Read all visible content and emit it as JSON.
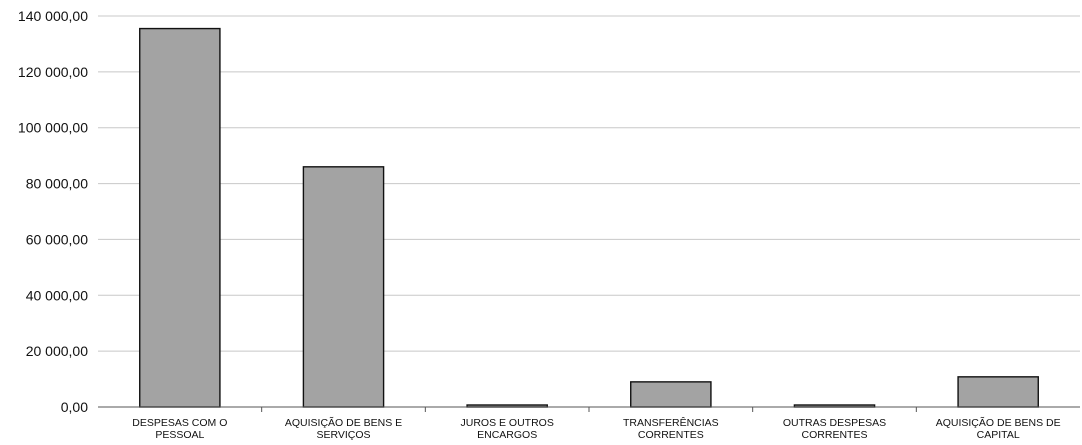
{
  "chart_data": {
    "type": "bar",
    "title": "",
    "xlabel": "",
    "ylabel": "",
    "categories": [
      [
        "DESPESAS COM O",
        "PESSOAL"
      ],
      [
        "AQUISIÇÃO DE BENS E",
        "SERVIÇOS"
      ],
      [
        "JUROS E OUTROS",
        "ENCARGOS"
      ],
      [
        "TRANSFERÊNCIAS",
        "CORRENTES"
      ],
      [
        "OUTRAS DESPESAS",
        "CORRENTES"
      ],
      [
        "AQUISIÇÃO DE BENS DE",
        "CAPITAL"
      ]
    ],
    "values": [
      135500,
      86000,
      400,
      9000,
      300,
      10800
    ],
    "ylim": [
      0,
      140000
    ],
    "yticks": [
      0,
      20000,
      40000,
      60000,
      80000,
      100000,
      120000,
      140000
    ],
    "ytick_labels": [
      "0,00",
      "20 000,00",
      "40 000,00",
      "60 000,00",
      "80 000,00",
      "100 000,00",
      "120 000,00",
      "140 000,00"
    ],
    "grid": true,
    "bar_color": "#a3a3a3",
    "legend": "none"
  }
}
